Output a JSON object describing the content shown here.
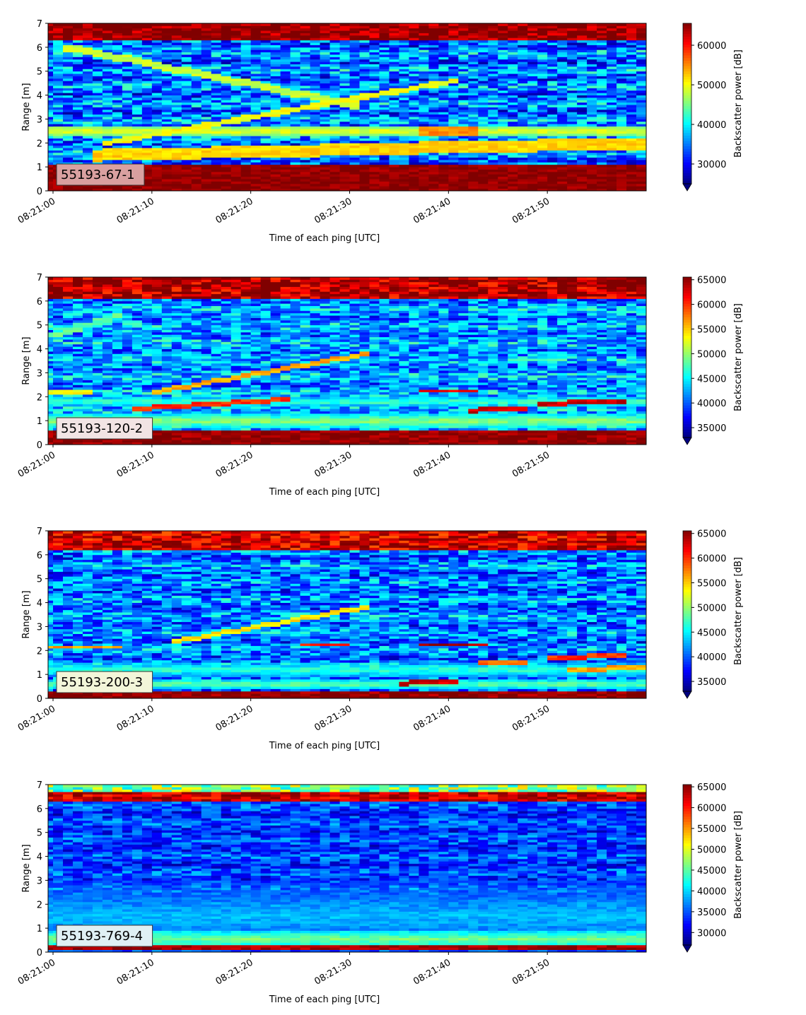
{
  "chart_data": [
    {
      "type": "heatmap",
      "label": "55193-67-1",
      "label_bg": "#d9a0a0",
      "xlabel": "Time of each ping [UTC]",
      "ylabel": "Range [m]",
      "ylim": [
        0,
        7
      ],
      "yticks": [
        0,
        1,
        2,
        3,
        4,
        5,
        6,
        7
      ],
      "xticks": [
        "08:21:00",
        "08:21:10",
        "08:21:20",
        "08:21:30",
        "08:21:40",
        "08:21:50"
      ],
      "x_range": [
        "08:21:00",
        "08:21:59"
      ],
      "colorbar": {
        "label": "Backscatter power [dB]",
        "min": 25000,
        "max": 65535,
        "ticks": [
          30000,
          40000,
          50000,
          60000
        ],
        "extend": "min"
      },
      "colormap": "jet",
      "features": {
        "noise_level": 35000,
        "noise_var": 7000,
        "surface_band": {
          "from": 6.3,
          "to": 7.0,
          "value": 65000
        },
        "bottom_band": {
          "from": 0.0,
          "to": 1.15,
          "value": 65000
        },
        "thin_bands": [
          {
            "y": 2.5,
            "value": 50000,
            "width": 0.2,
            "x_from": 0,
            "x_to": 59
          }
        ],
        "tracks": [
          {
            "x": [
              1,
              30
            ],
            "y": [
              6.0,
              3.6
            ],
            "value": 48000,
            "width": 0.15
          },
          {
            "x": [
              5,
              40
            ],
            "y": [
              2.0,
              4.6
            ],
            "value": 50000,
            "width": 0.12
          },
          {
            "x": [
              4,
              59
            ],
            "y": [
              1.5,
              2.0
            ],
            "value": 52000,
            "width": 0.25
          },
          {
            "x": [
              37,
              42
            ],
            "y": [
              2.5,
              2.5
            ],
            "value": 55000,
            "width": 0.15
          }
        ]
      }
    },
    {
      "type": "heatmap",
      "label": "55193-120-2",
      "label_bg": "#f2e4e4",
      "xlabel": "Time of each ping [UTC]",
      "ylabel": "Range [m]",
      "ylim": [
        0,
        7
      ],
      "yticks": [
        0,
        1,
        2,
        3,
        4,
        5,
        6,
        7
      ],
      "xticks": [
        "08:21:00",
        "08:21:10",
        "08:21:20",
        "08:21:30",
        "08:21:40",
        "08:21:50"
      ],
      "x_range": [
        "08:21:00",
        "08:21:59"
      ],
      "colorbar": {
        "label": "Backscatter power [dB]",
        "min": 33000,
        "max": 65535,
        "ticks": [
          35000,
          40000,
          45000,
          50000,
          55000,
          60000,
          65000
        ],
        "extend": "min"
      },
      "colormap": "jet",
      "features": {
        "noise_level": 42000,
        "noise_var": 5000,
        "surface_band": {
          "from": 6.15,
          "to": 7.0,
          "value": 64000
        },
        "bottom_band": {
          "from": 0.0,
          "to": 0.55,
          "value": 65000
        },
        "thin_bands": [
          {
            "y": 2.2,
            "value": 56000,
            "width": 0.1,
            "x_from": 0,
            "x_to": 3
          },
          {
            "y": 1.8,
            "value": 48000,
            "width": 0.2,
            "x_from": 0,
            "x_to": 59
          },
          {
            "y": 1.0,
            "value": 50000,
            "width": 0.3,
            "x_from": 0,
            "x_to": 59
          }
        ],
        "tracks": [
          {
            "x": [
              0,
              6
            ],
            "y": [
              4.6,
              5.4
            ],
            "value": 48000,
            "width": 0.12
          },
          {
            "x": [
              10,
              31
            ],
            "y": [
              2.2,
              3.8
            ],
            "value": 56000,
            "width": 0.1
          },
          {
            "x": [
              8,
              23
            ],
            "y": [
              1.5,
              1.9
            ],
            "value": 60000,
            "width": 0.1
          },
          {
            "x": [
              37,
              42
            ],
            "y": [
              2.25,
              2.25
            ],
            "value": 62000,
            "width": 0.1
          },
          {
            "x": [
              42,
              47
            ],
            "y": [
              1.45,
              1.55
            ],
            "value": 63000,
            "width": 0.1
          },
          {
            "x": [
              49,
              57
            ],
            "y": [
              1.7,
              1.85
            ],
            "value": 63000,
            "width": 0.1
          }
        ]
      }
    },
    {
      "type": "heatmap",
      "label": "55193-200-3",
      "label_bg": "#f2f6d9",
      "xlabel": "Time of each ping [UTC]",
      "ylabel": "Range [m]",
      "ylim": [
        0,
        7
      ],
      "yticks": [
        0,
        1,
        2,
        3,
        4,
        5,
        6,
        7
      ],
      "xticks": [
        "08:21:00",
        "08:21:10",
        "08:21:20",
        "08:21:30",
        "08:21:40",
        "08:21:50"
      ],
      "x_range": [
        "08:21:00",
        "08:21:59"
      ],
      "colorbar": {
        "label": "Backscatter power [dB]",
        "min": 33000,
        "max": 65535,
        "ticks": [
          35000,
          40000,
          45000,
          50000,
          55000,
          60000,
          65000
        ],
        "extend": "min"
      },
      "colormap": "jet",
      "features": {
        "noise_level": 41000,
        "noise_var": 5000,
        "surface_band": {
          "from": 6.2,
          "to": 7.0,
          "value": 63000
        },
        "bottom_band": {
          "from": 0.0,
          "to": 0.35,
          "value": 65000
        },
        "thin_bands": [
          {
            "y": 2.15,
            "value": 56000,
            "width": 0.1,
            "x_from": 0,
            "x_to": 6
          },
          {
            "y": 1.2,
            "value": 47000,
            "width": 0.3,
            "x_from": 0,
            "x_to": 59
          },
          {
            "y": 0.6,
            "value": 49000,
            "width": 0.2,
            "x_from": 0,
            "x_to": 59
          }
        ],
        "tracks": [
          {
            "x": [
              12,
              31
            ],
            "y": [
              2.4,
              3.8
            ],
            "value": 54000,
            "width": 0.1
          },
          {
            "x": [
              25,
              29
            ],
            "y": [
              2.25,
              2.25
            ],
            "value": 60000,
            "width": 0.1
          },
          {
            "x": [
              37,
              43
            ],
            "y": [
              2.25,
              2.25
            ],
            "value": 64000,
            "width": 0.1
          },
          {
            "x": [
              43,
              47
            ],
            "y": [
              1.5,
              1.5
            ],
            "value": 58000,
            "width": 0.1
          },
          {
            "x": [
              50,
              57
            ],
            "y": [
              1.7,
              1.8
            ],
            "value": 60000,
            "width": 0.1
          },
          {
            "x": [
              52,
              59
            ],
            "y": [
              1.2,
              1.3
            ],
            "value": 56000,
            "width": 0.1
          },
          {
            "x": [
              35,
              40
            ],
            "y": [
              0.65,
              0.7
            ],
            "value": 63000,
            "width": 0.1
          }
        ]
      }
    },
    {
      "type": "heatmap",
      "label": "55193-769-4",
      "label_bg": "#dff0f4",
      "xlabel": "Time of each ping [UTC]",
      "ylabel": "Range [m]",
      "ylim": [
        0,
        7
      ],
      "yticks": [
        0,
        1,
        2,
        3,
        4,
        5,
        6,
        7
      ],
      "xticks": [
        "08:21:00",
        "08:21:10",
        "08:21:20",
        "08:21:30",
        "08:21:40",
        "08:21:50"
      ],
      "x_range": [
        "08:21:00",
        "08:21:59"
      ],
      "colorbar": {
        "label": "Backscatter power [dB]",
        "min": 27000,
        "max": 65535,
        "ticks": [
          30000,
          35000,
          40000,
          45000,
          50000,
          55000,
          60000,
          65000
        ],
        "extend": "min"
      },
      "colormap": "jet",
      "features": {
        "noise_level": 34000,
        "noise_var": 4500,
        "surface_band": {
          "from": 6.3,
          "to": 6.65,
          "value": 63000
        },
        "surface_fringe": {
          "from": 6.65,
          "to": 7.0,
          "value": 46000
        },
        "bottom_band": {
          "from": 0.1,
          "to": 0.35,
          "value": 64000
        },
        "thin_bands": [
          {
            "y": 0.55,
            "value": 46000,
            "width": 0.35,
            "x_from": 0,
            "x_to": 59
          },
          {
            "y": 1.5,
            "value": 39000,
            "width": 1.5,
            "x_from": 0,
            "x_to": 59
          }
        ],
        "tracks": []
      }
    }
  ]
}
